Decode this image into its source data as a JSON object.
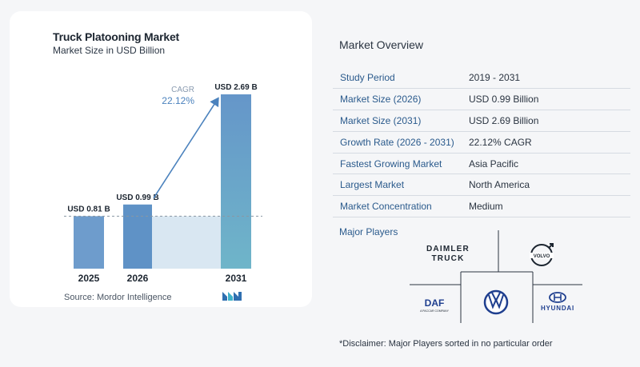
{
  "chart_data": {
    "type": "bar",
    "title": "Truck Platooning Market",
    "subtitle": "Market Size in USD Billion",
    "categories": [
      "2025",
      "2026",
      "2031"
    ],
    "values": [
      0.81,
      0.99,
      2.69
    ],
    "value_labels": [
      "USD 0.81 B",
      "USD 0.99 B",
      "USD 2.69 B"
    ],
    "ylim": [
      0,
      2.69
    ],
    "grid": false,
    "cagr_label": "CAGR",
    "cagr_value": "22.12%",
    "colors": {
      "bar_2025": "#6e9ccc",
      "bar_2026": "#5f92c6",
      "bar_2031_top": "#6596c9",
      "bar_2031_bottom": "#6fb5c9",
      "band": "#d9e7f2",
      "arrow": "#4b82bd"
    }
  },
  "source": "Source:  Mordor Intelligence",
  "overview": {
    "title": "Market Overview",
    "rows": [
      {
        "key": "Study Period",
        "value": "2019 - 2031"
      },
      {
        "key": "Market Size (2026)",
        "value": "USD 0.99 Billion"
      },
      {
        "key": "Market Size (2031)",
        "value": "USD 2.69 Billion"
      },
      {
        "key": "Growth Rate (2026 - 2031)",
        "value": "22.12% CAGR"
      },
      {
        "key": "Fastest Growing Market",
        "value": "Asia Pacific"
      },
      {
        "key": "Largest Market",
        "value": "North America"
      },
      {
        "key": "Market Concentration",
        "value": "Medium"
      }
    ]
  },
  "players": {
    "title": "Major Players",
    "daimler_line1": "DAIMLER",
    "daimler_line2": "TRUCK",
    "daf_word": "DAF",
    "daf_sub": "A PACCAR COMPANY",
    "hyundai_word": "HYUNDAI",
    "volvo_word": "VOLVO"
  },
  "disclaimer": "*Disclaimer: Major Players sorted in no particular order"
}
